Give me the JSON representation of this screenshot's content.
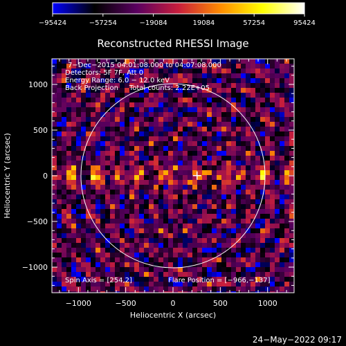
{
  "colorbar": {
    "ticks": [
      "−95424",
      "−57254",
      "−19084",
      "19084",
      "57254",
      "95424"
    ],
    "min": -95424,
    "max": 95424,
    "colormap": [
      "#0000ff",
      "#000000",
      "#5a0060",
      "#c81e3c",
      "#ff8c00",
      "#ffff00",
      "#ffffff"
    ]
  },
  "chart_data": {
    "type": "heatmap",
    "title": "Reconstructed RHESSI Image",
    "xlabel": "Heliocentric X (arcsec)",
    "ylabel": "Heliocentric Y (arcsec)",
    "xlim": [
      -1280,
      1280
    ],
    "ylim": [
      -1280,
      1280
    ],
    "xticks": [
      -1000,
      -500,
      0,
      500,
      1000
    ],
    "yticks": [
      -1000,
      -500,
      0,
      500,
      1000
    ],
    "xtick_labels": [
      "−1000",
      "−500",
      "0",
      "500",
      "1000"
    ],
    "ytick_labels": [
      "−1000",
      "−500",
      "0",
      "500",
      "1000"
    ],
    "solar_limb_radius": 973,
    "flare_position": [
      -966,
      -137
    ],
    "cross_marker": [
      254,
      2
    ],
    "info_lines": [
      "7−Dec−2015 04:01:08.000 to 04:07:08.000",
      "Detectors: 5F 7F, Att 0",
      "Energy Range: 6.0 − 12.0 keV",
      "Back Projection     Total counts: 2.22E+05"
    ],
    "spin_axis_label": "Spin Axis = [254,2]",
    "flare_position_label": "Flare Position = [−966,−137]"
  },
  "timestamp": "24−May−2022 09:17"
}
